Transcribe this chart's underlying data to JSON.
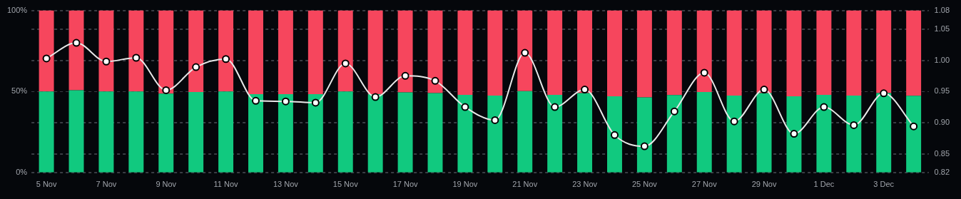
{
  "chart_data": {
    "type": "bar",
    "stacked": true,
    "categories": [
      "5 Nov",
      null,
      "7 Nov",
      null,
      "9 Nov",
      null,
      "11 Nov",
      null,
      "13 Nov",
      null,
      "15 Nov",
      null,
      "17 Nov",
      null,
      "19 Nov",
      null,
      "21 Nov",
      null,
      "23 Nov",
      null,
      "25 Nov",
      null,
      "27 Nov",
      null,
      "29 Nov",
      null,
      "1 Dec",
      null,
      "3 Dec",
      null
    ],
    "series": [
      {
        "color": "#11c97f",
        "values": [
          50.0,
          50.8,
          50.0,
          50.0,
          48.7,
          49.7,
          50.0,
          48.3,
          48.3,
          48.3,
          50.0,
          48.3,
          49.4,
          49.0,
          47.9,
          47.5,
          50.2,
          47.9,
          49.0,
          47.0,
          46.3,
          47.8,
          49.7,
          47.5,
          49.0,
          47.0,
          47.9,
          47.5,
          49.0,
          47.3
        ]
      },
      {
        "color": "#f6465d",
        "values": [
          50.0,
          49.2,
          50.0,
          50.0,
          51.3,
          50.3,
          50.0,
          51.7,
          51.7,
          51.7,
          50.0,
          51.7,
          50.6,
          51.0,
          52.1,
          52.5,
          49.8,
          52.1,
          51.0,
          53.0,
          53.7,
          52.2,
          50.3,
          52.5,
          51.0,
          53.0,
          52.1,
          52.5,
          51.0,
          52.7
        ]
      },
      {
        "type": "line",
        "axis": "y2",
        "color": "#e8e8e8",
        "marker": "circle",
        "line_style": "solid",
        "values": [
          1.003,
          1.028,
          0.998,
          1.004,
          0.952,
          0.989,
          1.002,
          0.935,
          0.934,
          0.932,
          0.995,
          0.941,
          0.975,
          0.967,
          0.925,
          0.904,
          1.012,
          0.925,
          0.953,
          0.88,
          0.862,
          0.918,
          0.98,
          0.902,
          0.953,
          0.882,
          0.925,
          0.896,
          0.947,
          0.894
        ]
      }
    ],
    "ylim": [
      0,
      100
    ],
    "yticks": [
      {
        "value": 0,
        "label": "0%"
      },
      {
        "value": 50,
        "label": "50%"
      },
      {
        "value": 100,
        "label": "100%"
      }
    ],
    "y2lim": [
      0.82,
      1.08
    ],
    "y2ticks": [
      0.82,
      0.85,
      {
        "value": 0.9,
        "label": "0.90"
      },
      0.95,
      {
        "value": 1.0,
        "label": "1.00"
      },
      1.05,
      1.08
    ],
    "grid": "y",
    "legend": false
  }
}
